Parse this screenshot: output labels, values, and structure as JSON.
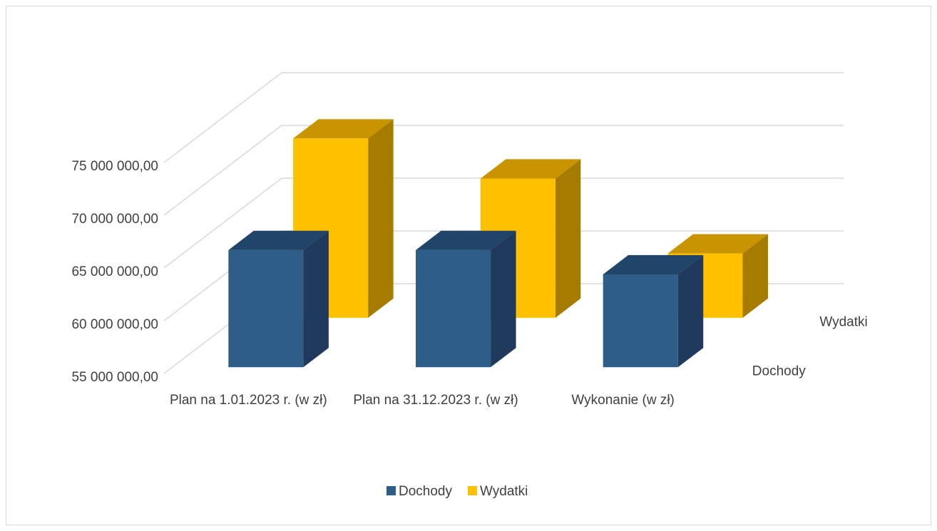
{
  "chart_data": {
    "type": "bar3d",
    "categories": [
      "Plan na 1.01.2023 r. (w zł)",
      "Plan na 31.12.2023 r. (w zł)",
      "Wykonanie (w zł)"
    ],
    "series": [
      {
        "name": "Dochody",
        "color": "#2e5d8a",
        "values": [
          66100000,
          66100000,
          63800000
        ]
      },
      {
        "name": "Wydatki",
        "color": "#ffc000",
        "values": [
          72000000,
          68200000,
          61100000
        ]
      }
    ],
    "ylim": [
      55000000,
      75000000
    ],
    "yticks": [
      {
        "value": 55000000,
        "label": "55 000 000,00"
      },
      {
        "value": 60000000,
        "label": "60 000 000,00"
      },
      {
        "value": 65000000,
        "label": "65 000 000,00"
      },
      {
        "value": 70000000,
        "label": "70 000 000,00"
      },
      {
        "value": 75000000,
        "label": "75 000 000,00"
      }
    ],
    "grid": true,
    "legend": "bottom"
  }
}
